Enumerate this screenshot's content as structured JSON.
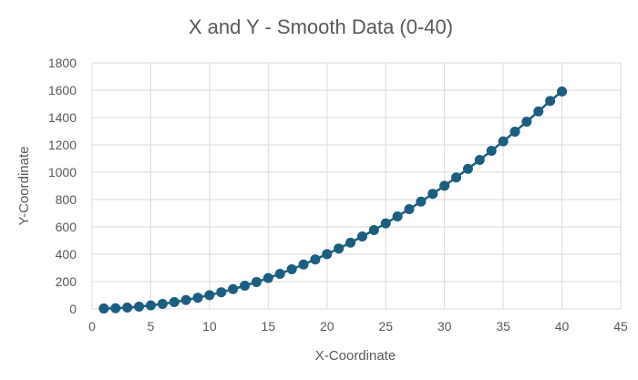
{
  "chart_data": {
    "type": "scatter",
    "title": "X and Y - Smooth Data (0-40)",
    "xlabel": "X-Coordinate",
    "ylabel": "Y-Coordinate",
    "xlim": [
      0,
      45
    ],
    "ylim": [
      0,
      1800
    ],
    "x_ticks": [
      "0",
      "5",
      "10",
      "15",
      "20",
      "25",
      "30",
      "35",
      "40",
      "45"
    ],
    "y_ticks": [
      "0",
      "200",
      "400",
      "600",
      "800",
      "1000",
      "1200",
      "1400",
      "1600",
      "1800"
    ],
    "grid": true,
    "legend": "none",
    "series": [
      {
        "color": "#1b5e80",
        "x": [
          1,
          2,
          3,
          4,
          5,
          6,
          7,
          8,
          9,
          10,
          11,
          12,
          13,
          14,
          15,
          16,
          17,
          18,
          19,
          20,
          21,
          22,
          23,
          24,
          25,
          26,
          27,
          28,
          29,
          30,
          31,
          32,
          33,
          34,
          35,
          36,
          37,
          38,
          39,
          40
        ],
        "y": [
          3,
          5,
          10,
          17,
          26,
          37,
          50,
          65,
          82,
          101,
          122,
          145,
          170,
          197,
          226,
          257,
          290,
          325,
          362,
          401,
          442,
          485,
          530,
          577,
          626,
          677,
          730,
          785,
          842,
          901,
          962,
          1025,
          1090,
          1157,
          1226,
          1297,
          1370,
          1445,
          1522,
          1591
        ]
      }
    ]
  }
}
